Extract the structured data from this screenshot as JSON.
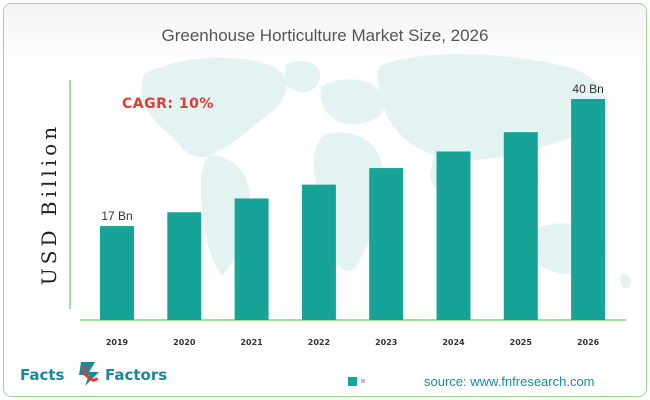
{
  "chart_data": {
    "type": "bar",
    "title": "Greenhouse Horticulture Market Size, 2026",
    "ylabel": "USD Billion",
    "xlabel": "",
    "categories": [
      "2019",
      "2020",
      "2021",
      "2022",
      "2023",
      "2024",
      "2025",
      "2026"
    ],
    "values": [
      17,
      19.5,
      22,
      24.5,
      27.5,
      30.5,
      34,
      40
    ],
    "data_labels": [
      "17 Bn",
      "",
      "",
      "",
      "",
      "",
      "",
      "40 Bn"
    ],
    "ylim": [
      0,
      44
    ],
    "grid": false,
    "bar_color": "#17a398",
    "annotation": "CAGR: 10%",
    "annotation_color": "#e53935"
  },
  "brand": {
    "left": "Facts",
    "right": "Factors",
    "icon": "ampersand-logo-icon"
  },
  "source": "source: www.fnfresearch.com",
  "colors": {
    "frame_border": "#9fd6a0",
    "axis": "#a6dba0",
    "map": "#e3f3f1",
    "brand_teal": "#1a8a9a",
    "brand_red": "#e53935"
  }
}
